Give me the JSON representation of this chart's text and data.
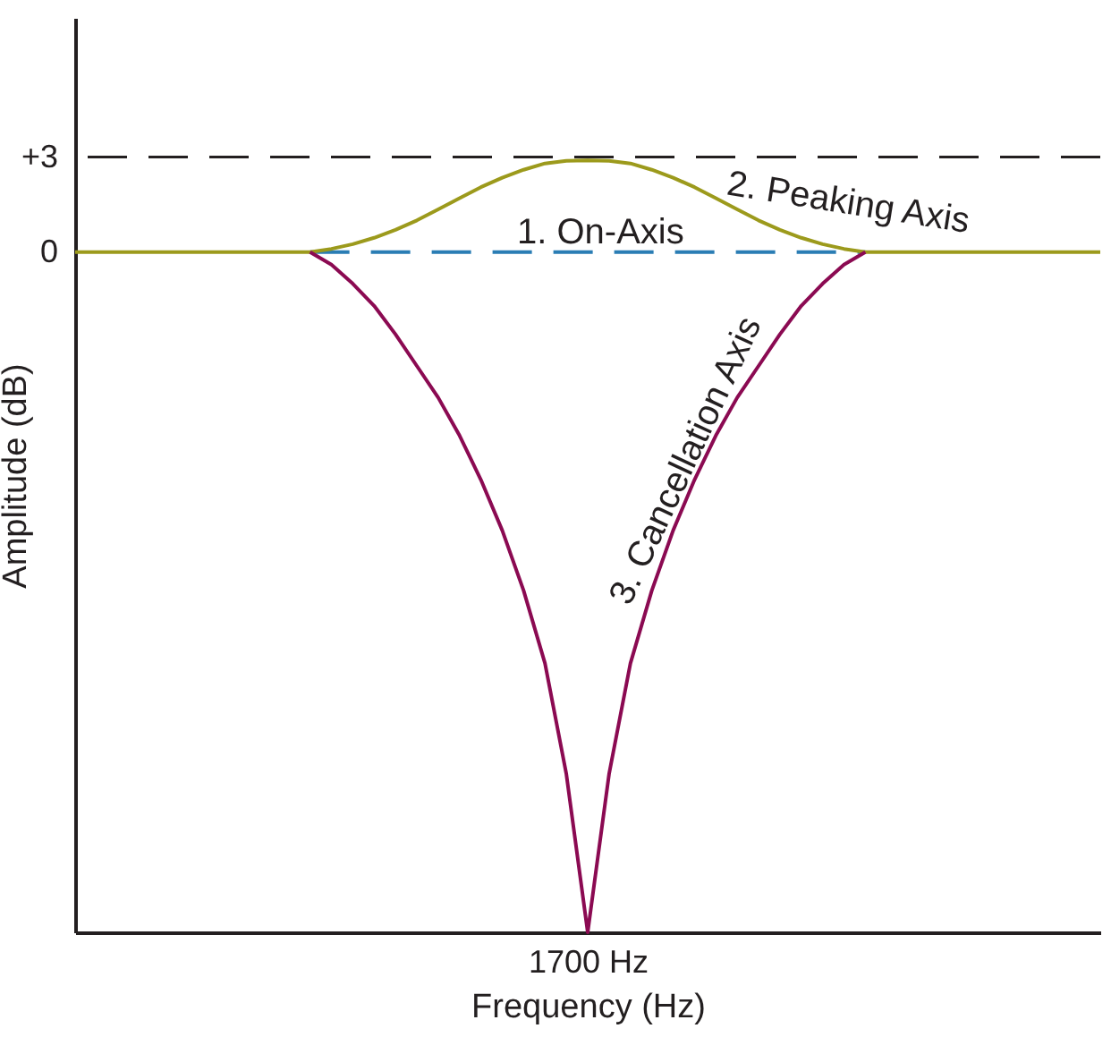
{
  "chart_data": {
    "type": "line",
    "xlabel": "Frequency (Hz)",
    "ylabel": "Amplitude (dB)",
    "categories": [
      null,
      null,
      null,
      null,
      null,
      null,
      null,
      null,
      null,
      null,
      null,
      null,
      null,
      null,
      null,
      null,
      null,
      null,
      null,
      null,
      null,
      null,
      null,
      null,
      "1700 Hz",
      null,
      null,
      null,
      null,
      null,
      null,
      null,
      null,
      null,
      null,
      null,
      null,
      null,
      null,
      null,
      null,
      null,
      null,
      null,
      null,
      null,
      null,
      null,
      null
    ],
    "ylim": [
      -21.5,
      7.4
    ],
    "yticks": [
      {
        "value": 3,
        "label": "+3"
      },
      0
    ],
    "marker": "none",
    "ref_lines": [
      {
        "axis": "y",
        "value": 3,
        "color": "#231f20",
        "line_style": "dashed"
      }
    ],
    "series": [
      {
        "name": "1. On-Axis",
        "color": "#2a7db4",
        "line_style": "dashed",
        "values": [
          null,
          null,
          null,
          null,
          null,
          null,
          null,
          null,
          null,
          null,
          null,
          0,
          0,
          0,
          0,
          0,
          0,
          0,
          0,
          0,
          0,
          0,
          0,
          0,
          0,
          0,
          0,
          0,
          0,
          0,
          0,
          0,
          0,
          0,
          0,
          0,
          0,
          0,
          null,
          null,
          null,
          null,
          null,
          null,
          null,
          null,
          null,
          null,
          null
        ]
      },
      {
        "name": "2. Peaking Axis",
        "color": "#9c9a1c",
        "line_style": "solid",
        "values": [
          0,
          0,
          0,
          0,
          0,
          0,
          0,
          0,
          0,
          0,
          0,
          0,
          0.1,
          0.25,
          0.45,
          0.7,
          1.0,
          1.35,
          1.7,
          2.05,
          2.35,
          2.6,
          2.8,
          2.88,
          2.9,
          2.88,
          2.8,
          2.6,
          2.35,
          2.05,
          1.7,
          1.35,
          1.0,
          0.7,
          0.45,
          0.25,
          0.1,
          0,
          0,
          0,
          0,
          0,
          0,
          0,
          0,
          0,
          0,
          0,
          0
        ]
      },
      {
        "name": "3. Cancellation Axis",
        "color": "#8b0a52",
        "line_style": "solid",
        "values": [
          null,
          null,
          null,
          null,
          null,
          null,
          null,
          null,
          null,
          null,
          null,
          0,
          -0.4,
          -1.0,
          -1.7,
          -2.6,
          -3.6,
          -4.6,
          -5.8,
          -7.2,
          -8.8,
          -10.7,
          -13,
          -16.5,
          -21.5,
          -16.5,
          -13,
          -10.7,
          -8.8,
          -7.2,
          -5.8,
          -4.6,
          -3.6,
          -2.6,
          -1.7,
          -1.0,
          -0.4,
          0,
          null,
          null,
          null,
          null,
          null,
          null,
          null,
          null,
          null,
          null,
          null
        ]
      }
    ]
  }
}
